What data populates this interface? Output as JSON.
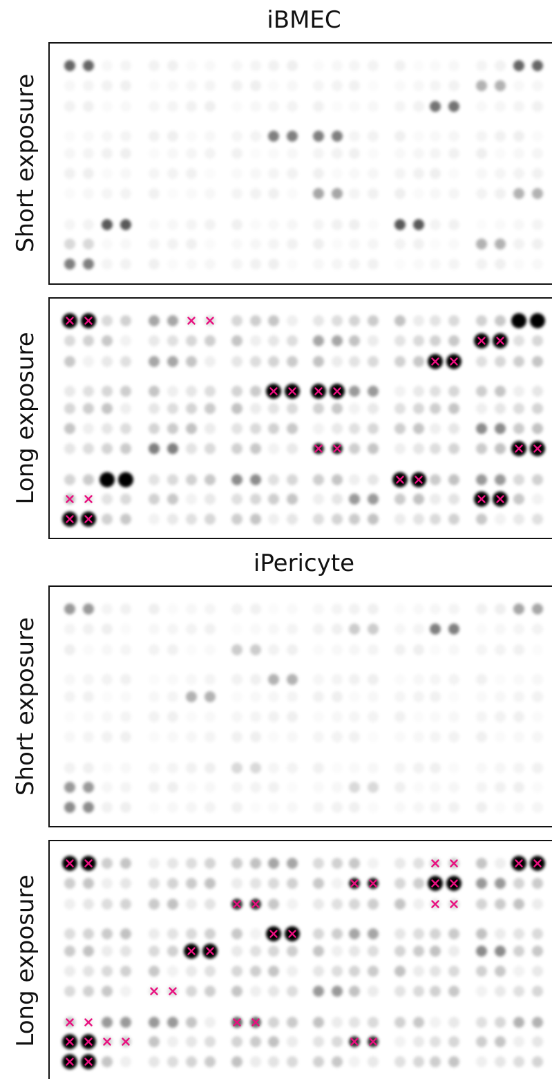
{
  "figure": {
    "sections": [
      {
        "title": "iBMEC",
        "panels": [
          {
            "label": "Short exposure"
          },
          {
            "label": "Long exposure"
          }
        ]
      },
      {
        "title": "iPericyte",
        "panels": [
          {
            "label": "Short exposure"
          },
          {
            "label": "Long exposure"
          }
        ]
      }
    ]
  }
}
